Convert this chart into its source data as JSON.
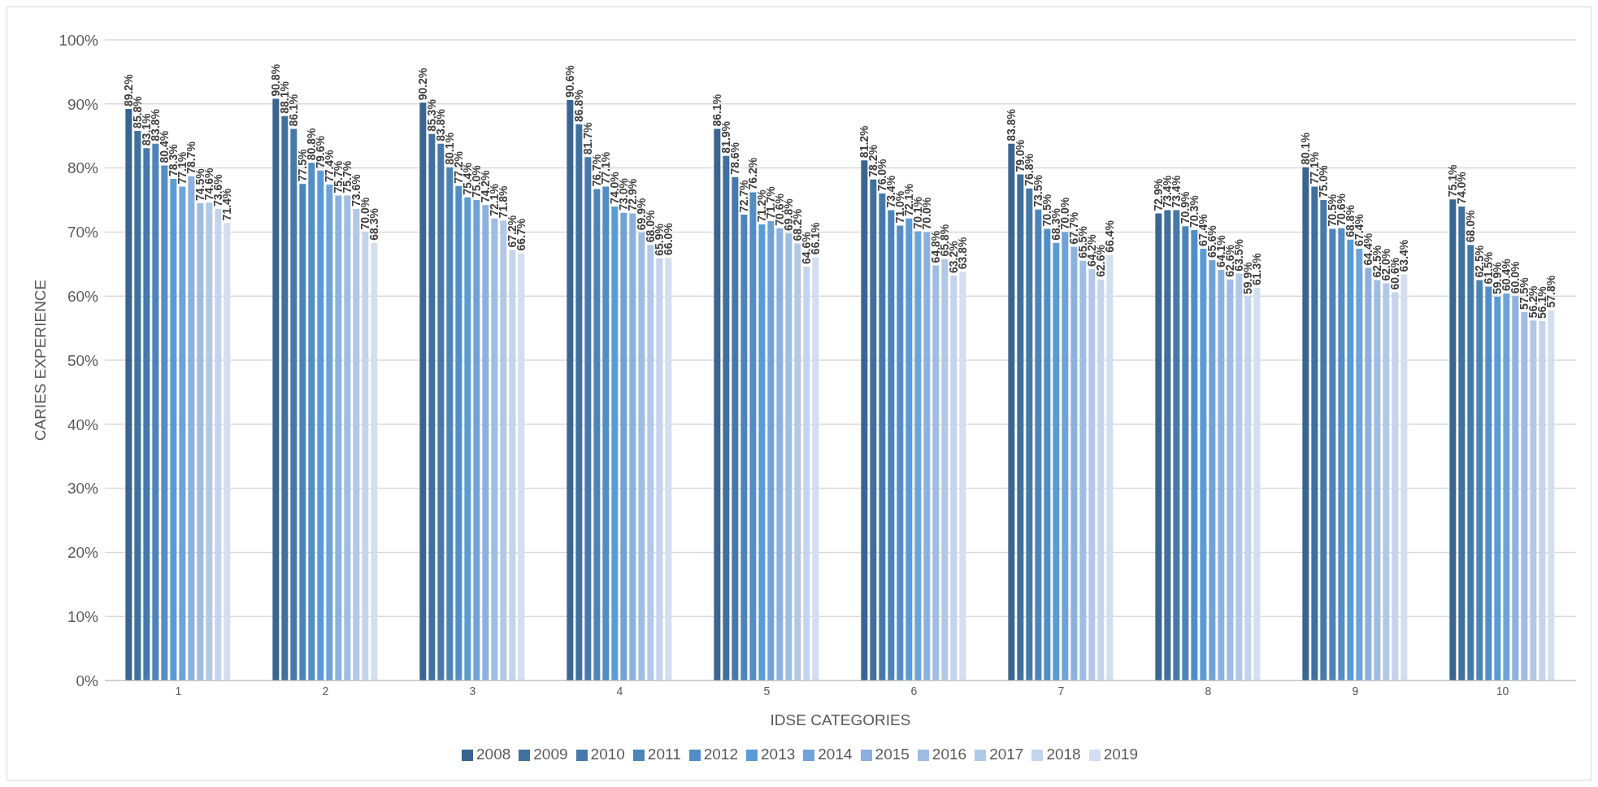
{
  "chart_data": {
    "type": "bar",
    "xlabel": "IDSE CATEGORIES",
    "ylabel": "CARIES EXPERIENCE",
    "categories": [
      "1",
      "2",
      "3",
      "4",
      "5",
      "6",
      "7",
      "8",
      "9",
      "10"
    ],
    "ylim": [
      0,
      100
    ],
    "yticks": [
      {
        "value": 0,
        "label": "0%"
      },
      {
        "value": 10,
        "label": "10%"
      },
      {
        "value": 20,
        "label": "20%"
      },
      {
        "value": 30,
        "label": "30%"
      },
      {
        "value": 40,
        "label": "40%"
      },
      {
        "value": 50,
        "label": "50%"
      },
      {
        "value": 60,
        "label": "60%"
      },
      {
        "value": 70,
        "label": "70%"
      },
      {
        "value": 80,
        "label": "80%"
      },
      {
        "value": 90,
        "label": "90%"
      },
      {
        "value": 100,
        "label": "100%"
      }
    ],
    "grid": "y",
    "legend": "bottom",
    "series": [
      {
        "name": "2008",
        "color": "#3a6590",
        "values": [
          89.2,
          90.8,
          90.2,
          90.6,
          86.1,
          81.2,
          83.8,
          72.9,
          80.1,
          75.1
        ],
        "value_labels": [
          "89.2%",
          "90.8%",
          "90.2%",
          "90.6%",
          "86.1%",
          "81.2%",
          "83.8%",
          "72.9%",
          "80.1%",
          "75.1%"
        ]
      },
      {
        "name": "2009",
        "color": "#40709c",
        "values": [
          85.8,
          88.1,
          85.3,
          86.8,
          81.9,
          78.2,
          79.0,
          73.4,
          77.1,
          74.0
        ],
        "value_labels": [
          "85.8%",
          "88.1%",
          "85.3%",
          "86.8%",
          "81.9%",
          "78.2%",
          "79.0%",
          "73.4%",
          "77.1%",
          "74.0%"
        ]
      },
      {
        "name": "2010",
        "color": "#4679aa",
        "values": [
          83.1,
          86.1,
          83.8,
          81.7,
          78.6,
          76.0,
          76.8,
          73.4,
          75.0,
          68.0
        ],
        "value_labels": [
          "83.1%",
          "86.1%",
          "83.8%",
          "81.7%",
          "78.6%",
          "76.0%",
          "76.8%",
          "73.4%",
          "75.0%",
          "68.0%"
        ]
      },
      {
        "name": "2011",
        "color": "#4d84b8",
        "values": [
          83.8,
          77.5,
          80.1,
          76.7,
          72.7,
          73.4,
          73.5,
          70.9,
          70.5,
          62.5
        ],
        "value_labels": [
          "83.8%",
          "77.5%",
          "80.1%",
          "76.7%",
          "72.7%",
          "73.4%",
          "73.5%",
          "70.9%",
          "70.5%",
          "62.5%"
        ]
      },
      {
        "name": "2012",
        "color": "#528dc6",
        "values": [
          80.4,
          80.8,
          77.2,
          77.1,
          76.2,
          71.0,
          70.5,
          70.3,
          70.6,
          61.5
        ],
        "value_labels": [
          "80.4%",
          "80.8%",
          "77.2%",
          "77.1%",
          "76.2%",
          "71.0%",
          "70.5%",
          "70.3%",
          "70.6%",
          "61.5%"
        ]
      },
      {
        "name": "2013",
        "color": "#5b9bd5",
        "values": [
          78.3,
          79.6,
          75.4,
          74.0,
          71.2,
          72.1,
          68.3,
          67.4,
          68.8,
          59.9
        ],
        "value_labels": [
          "78.3%",
          "79.6%",
          "75.4%",
          "74.0%",
          "71.2%",
          "72.1%",
          "68.3%",
          "67.4%",
          "68.8%",
          "59.9%"
        ]
      },
      {
        "name": "2014",
        "color": "#6fa3d8",
        "values": [
          77.1,
          77.4,
          75.0,
          73.0,
          71.7,
          70.1,
          70.0,
          65.6,
          67.4,
          60.4
        ],
        "value_labels": [
          "77.1%",
          "77.4%",
          "75.0%",
          "73.0%",
          "71.7%",
          "70.1%",
          "70.0%",
          "65.6%",
          "67.4%",
          "60.4%"
        ]
      },
      {
        "name": "2015",
        "color": "#8db1de",
        "values": [
          78.7,
          75.7,
          74.2,
          72.9,
          70.6,
          70.0,
          67.7,
          64.1,
          64.4,
          60.0
        ],
        "value_labels": [
          "78.7%",
          "75.7%",
          "74.2%",
          "72.9%",
          "70.6%",
          "70.0%",
          "67.7%",
          "64.1%",
          "64.4%",
          "60.0%"
        ]
      },
      {
        "name": "2016",
        "color": "#9fbce3",
        "values": [
          74.5,
          75.7,
          72.1,
          69.9,
          69.8,
          64.8,
          65.5,
          62.6,
          62.5,
          57.5
        ],
        "value_labels": [
          "74.5%",
          "75.7%",
          "72.1%",
          "69.9%",
          "69.8%",
          "64.8%",
          "65.5%",
          "62.6%",
          "62.5%",
          "57.5%"
        ]
      },
      {
        "name": "2017",
        "color": "#b2c8e7",
        "values": [
          74.6,
          73.6,
          71.8,
          68.0,
          68.2,
          65.8,
          64.2,
          63.5,
          62.0,
          56.2
        ],
        "value_labels": [
          "74.6%",
          "73.6%",
          "71.8%",
          "68.0%",
          "68.2%",
          "65.8%",
          "64.2%",
          "63.5%",
          "62.0%",
          "56.2%"
        ]
      },
      {
        "name": "2018",
        "color": "#c4d4ec",
        "values": [
          73.6,
          70.0,
          67.2,
          65.9,
          64.6,
          63.2,
          62.6,
          59.9,
          60.6,
          56.1
        ],
        "value_labels": [
          "73.6%",
          "70.0%",
          "67.2%",
          "65.9%",
          "64.6%",
          "63.2%",
          "62.6%",
          "59.9%",
          "60.6%",
          "56.1%"
        ]
      },
      {
        "name": "2019",
        "color": "#d3def0",
        "values": [
          71.4,
          68.3,
          66.7,
          66.0,
          66.1,
          63.8,
          66.4,
          61.3,
          63.4,
          57.8
        ],
        "value_labels": [
          "71.4%",
          "68.3%",
          "66.7%",
          "66.0%",
          "66.1%",
          "63.8%",
          "66.4%",
          "61.3%",
          "63.4%",
          "57.8%"
        ]
      }
    ]
  }
}
